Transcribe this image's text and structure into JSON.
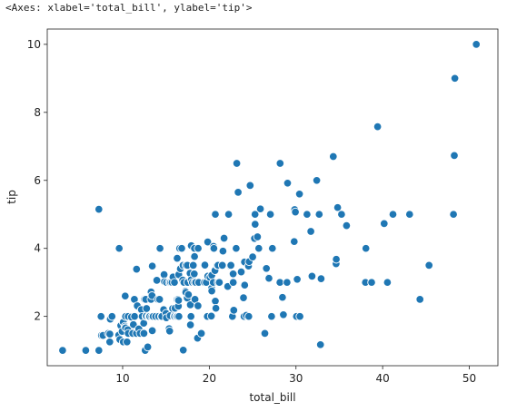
{
  "output_repr": "<Axes: xlabel='total_bill', ylabel='tip'>",
  "chart_data": {
    "type": "scatter",
    "xlabel": "total_bill",
    "ylabel": "tip",
    "xlim": [
      1.3,
      53.3
    ],
    "ylim": [
      0.55,
      10.45
    ],
    "x_ticks": [
      10,
      20,
      30,
      40,
      50
    ],
    "y_ticks": [
      2,
      4,
      6,
      8,
      10
    ],
    "grid": false,
    "marker_color": "#1f77b4",
    "marker_edge": "#ffffff",
    "points": [
      [
        3.07,
        1.0
      ],
      [
        5.75,
        1.0
      ],
      [
        7.25,
        1.0
      ],
      [
        7.25,
        5.15
      ],
      [
        7.51,
        2.0
      ],
      [
        7.56,
        1.44
      ],
      [
        7.74,
        1.44
      ],
      [
        8.35,
        1.5
      ],
      [
        8.51,
        1.25
      ],
      [
        8.52,
        1.48
      ],
      [
        8.58,
        1.92
      ],
      [
        8.77,
        2.0
      ],
      [
        9.55,
        1.45
      ],
      [
        9.6,
        4.0
      ],
      [
        9.68,
        1.32
      ],
      [
        9.78,
        1.73
      ],
      [
        9.94,
        1.56
      ],
      [
        10.07,
        1.25
      ],
      [
        10.07,
        1.83
      ],
      [
        10.27,
        1.71
      ],
      [
        10.29,
        2.6
      ],
      [
        10.33,
        2.0
      ],
      [
        10.33,
        1.67
      ],
      [
        10.34,
        1.66
      ],
      [
        10.34,
        2.0
      ],
      [
        10.51,
        1.25
      ],
      [
        10.59,
        1.61
      ],
      [
        10.63,
        2.0
      ],
      [
        10.65,
        1.5
      ],
      [
        11.02,
        1.98
      ],
      [
        11.17,
        1.5
      ],
      [
        11.24,
        1.76
      ],
      [
        11.35,
        2.5
      ],
      [
        11.38,
        2.0
      ],
      [
        11.59,
        1.5
      ],
      [
        11.61,
        3.39
      ],
      [
        11.69,
        2.31
      ],
      [
        11.87,
        1.63
      ],
      [
        12.03,
        1.5
      ],
      [
        12.16,
        2.2
      ],
      [
        12.26,
        2.0
      ],
      [
        12.43,
        1.8
      ],
      [
        12.46,
        1.5
      ],
      [
        12.48,
        2.52
      ],
      [
        12.54,
        2.5
      ],
      [
        12.6,
        1.0
      ],
      [
        12.66,
        2.5
      ],
      [
        12.69,
        2.0
      ],
      [
        12.74,
        2.01
      ],
      [
        12.76,
        2.23
      ],
      [
        12.9,
        1.1
      ],
      [
        13.0,
        2.0
      ],
      [
        13.03,
        2.0
      ],
      [
        13.13,
        2.0
      ],
      [
        13.27,
        2.5
      ],
      [
        13.28,
        2.72
      ],
      [
        13.37,
        2.0
      ],
      [
        13.39,
        2.61
      ],
      [
        13.42,
        3.48
      ],
      [
        13.42,
        1.58
      ],
      [
        13.51,
        2.0
      ],
      [
        13.81,
        2.0
      ],
      [
        13.94,
        3.06
      ],
      [
        14.07,
        2.5
      ],
      [
        14.15,
        2.0
      ],
      [
        14.26,
        2.5
      ],
      [
        14.31,
        4.0
      ],
      [
        14.48,
        2.0
      ],
      [
        14.52,
        2.0
      ],
      [
        14.73,
        2.2
      ],
      [
        14.78,
        3.23
      ],
      [
        14.83,
        3.02
      ],
      [
        15.01,
        2.09
      ],
      [
        15.04,
        1.96
      ],
      [
        15.06,
        3.0
      ],
      [
        15.36,
        1.64
      ],
      [
        15.38,
        3.0
      ],
      [
        15.42,
        1.57
      ],
      [
        15.48,
        2.02
      ],
      [
        15.53,
        3.0
      ],
      [
        15.69,
        3.0
      ],
      [
        15.77,
        2.23
      ],
      [
        15.81,
        3.16
      ],
      [
        15.95,
        2.0
      ],
      [
        15.98,
        2.03
      ],
      [
        15.98,
        3.0
      ],
      [
        16.0,
        2.0
      ],
      [
        16.04,
        2.24
      ],
      [
        16.21,
        2.0
      ],
      [
        16.27,
        2.5
      ],
      [
        16.29,
        3.71
      ],
      [
        16.31,
        2.0
      ],
      [
        16.4,
        2.5
      ],
      [
        16.43,
        2.3
      ],
      [
        16.45,
        2.47
      ],
      [
        16.47,
        3.23
      ],
      [
        16.49,
        2.0
      ],
      [
        16.58,
        4.0
      ],
      [
        16.66,
        3.4
      ],
      [
        16.82,
        4.0
      ],
      [
        16.93,
        3.07
      ],
      [
        16.97,
        3.5
      ],
      [
        16.99,
        1.01
      ],
      [
        17.07,
        3.0
      ],
      [
        17.26,
        2.74
      ],
      [
        17.29,
        2.71
      ],
      [
        17.31,
        3.5
      ],
      [
        17.46,
        2.54
      ],
      [
        17.47,
        3.5
      ],
      [
        17.51,
        3.0
      ],
      [
        17.59,
        2.64
      ],
      [
        17.78,
        3.27
      ],
      [
        17.81,
        2.34
      ],
      [
        17.82,
        1.75
      ],
      [
        17.89,
        2.0
      ],
      [
        17.92,
        4.08
      ],
      [
        17.92,
        3.08
      ],
      [
        18.04,
        3.0
      ],
      [
        18.15,
        3.5
      ],
      [
        18.24,
        3.76
      ],
      [
        18.26,
        3.25
      ],
      [
        18.28,
        4.0
      ],
      [
        18.29,
        3.0
      ],
      [
        18.29,
        3.76
      ],
      [
        18.35,
        2.5
      ],
      [
        18.43,
        3.0
      ],
      [
        18.64,
        1.36
      ],
      [
        18.69,
        2.31
      ],
      [
        18.71,
        4.0
      ],
      [
        18.78,
        3.0
      ],
      [
        19.08,
        1.5
      ],
      [
        19.44,
        3.0
      ],
      [
        19.49,
        3.51
      ],
      [
        19.65,
        3.0
      ],
      [
        19.77,
        2.0
      ],
      [
        19.81,
        4.19
      ],
      [
        19.82,
        3.18
      ],
      [
        20.08,
        3.15
      ],
      [
        20.23,
        2.01
      ],
      [
        20.27,
        2.83
      ],
      [
        20.29,
        3.21
      ],
      [
        20.29,
        2.75
      ],
      [
        20.45,
        3.0
      ],
      [
        20.49,
        4.06
      ],
      [
        20.53,
        4.0
      ],
      [
        20.65,
        3.35
      ],
      [
        20.69,
        2.45
      ],
      [
        20.69,
        5.0
      ],
      [
        20.76,
        2.24
      ],
      [
        20.9,
        3.5
      ],
      [
        21.01,
        3.5
      ],
      [
        21.01,
        3.0
      ],
      [
        21.16,
        3.0
      ],
      [
        21.5,
        3.5
      ],
      [
        21.58,
        3.92
      ],
      [
        21.7,
        4.3
      ],
      [
        22.12,
        2.88
      ],
      [
        22.23,
        5.0
      ],
      [
        22.42,
        3.48
      ],
      [
        22.49,
        3.5
      ],
      [
        22.67,
        2.0
      ],
      [
        22.75,
        3.25
      ],
      [
        22.76,
        3.0
      ],
      [
        22.82,
        2.18
      ],
      [
        23.1,
        4.0
      ],
      [
        23.17,
        6.5
      ],
      [
        23.33,
        5.65
      ],
      [
        23.68,
        3.31
      ],
      [
        23.95,
        2.55
      ],
      [
        24.01,
        2.0
      ],
      [
        24.06,
        3.6
      ],
      [
        24.08,
        2.92
      ],
      [
        24.27,
        2.03
      ],
      [
        24.52,
        3.48
      ],
      [
        24.55,
        2.0
      ],
      [
        24.59,
        3.61
      ],
      [
        24.71,
        5.85
      ],
      [
        25.0,
        3.75
      ],
      [
        25.21,
        4.29
      ],
      [
        25.28,
        5.0
      ],
      [
        25.29,
        4.71
      ],
      [
        25.56,
        4.34
      ],
      [
        25.71,
        4.0
      ],
      [
        25.89,
        5.16
      ],
      [
        26.41,
        1.5
      ],
      [
        26.59,
        3.41
      ],
      [
        26.86,
        3.14
      ],
      [
        26.88,
        3.12
      ],
      [
        27.05,
        5.0
      ],
      [
        27.18,
        2.0
      ],
      [
        27.2,
        4.0
      ],
      [
        27.28,
        4.0
      ],
      [
        28.15,
        3.0
      ],
      [
        28.17,
        6.5
      ],
      [
        28.44,
        2.56
      ],
      [
        28.55,
        2.05
      ],
      [
        28.97,
        3.0
      ],
      [
        29.03,
        5.92
      ],
      [
        29.8,
        4.2
      ],
      [
        29.85,
        5.14
      ],
      [
        29.93,
        5.07
      ],
      [
        30.06,
        2.0
      ],
      [
        30.14,
        3.09
      ],
      [
        30.4,
        5.6
      ],
      [
        30.46,
        2.0
      ],
      [
        31.27,
        5.0
      ],
      [
        31.71,
        4.5
      ],
      [
        31.85,
        3.18
      ],
      [
        32.4,
        6.0
      ],
      [
        32.68,
        5.0
      ],
      [
        32.83,
        1.17
      ],
      [
        32.9,
        3.11
      ],
      [
        34.3,
        6.7
      ],
      [
        34.63,
        3.55
      ],
      [
        34.65,
        3.68
      ],
      [
        34.81,
        5.2
      ],
      [
        35.26,
        5.0
      ],
      [
        35.83,
        4.67
      ],
      [
        38.01,
        3.0
      ],
      [
        38.07,
        4.0
      ],
      [
        38.73,
        3.0
      ],
      [
        39.42,
        7.58
      ],
      [
        40.17,
        4.73
      ],
      [
        40.55,
        3.0
      ],
      [
        41.19,
        5.0
      ],
      [
        43.11,
        5.0
      ],
      [
        44.3,
        2.5
      ],
      [
        45.35,
        3.5
      ],
      [
        48.17,
        5.0
      ],
      [
        48.27,
        6.73
      ],
      [
        48.33,
        9.0
      ],
      [
        50.81,
        10.0
      ]
    ]
  }
}
